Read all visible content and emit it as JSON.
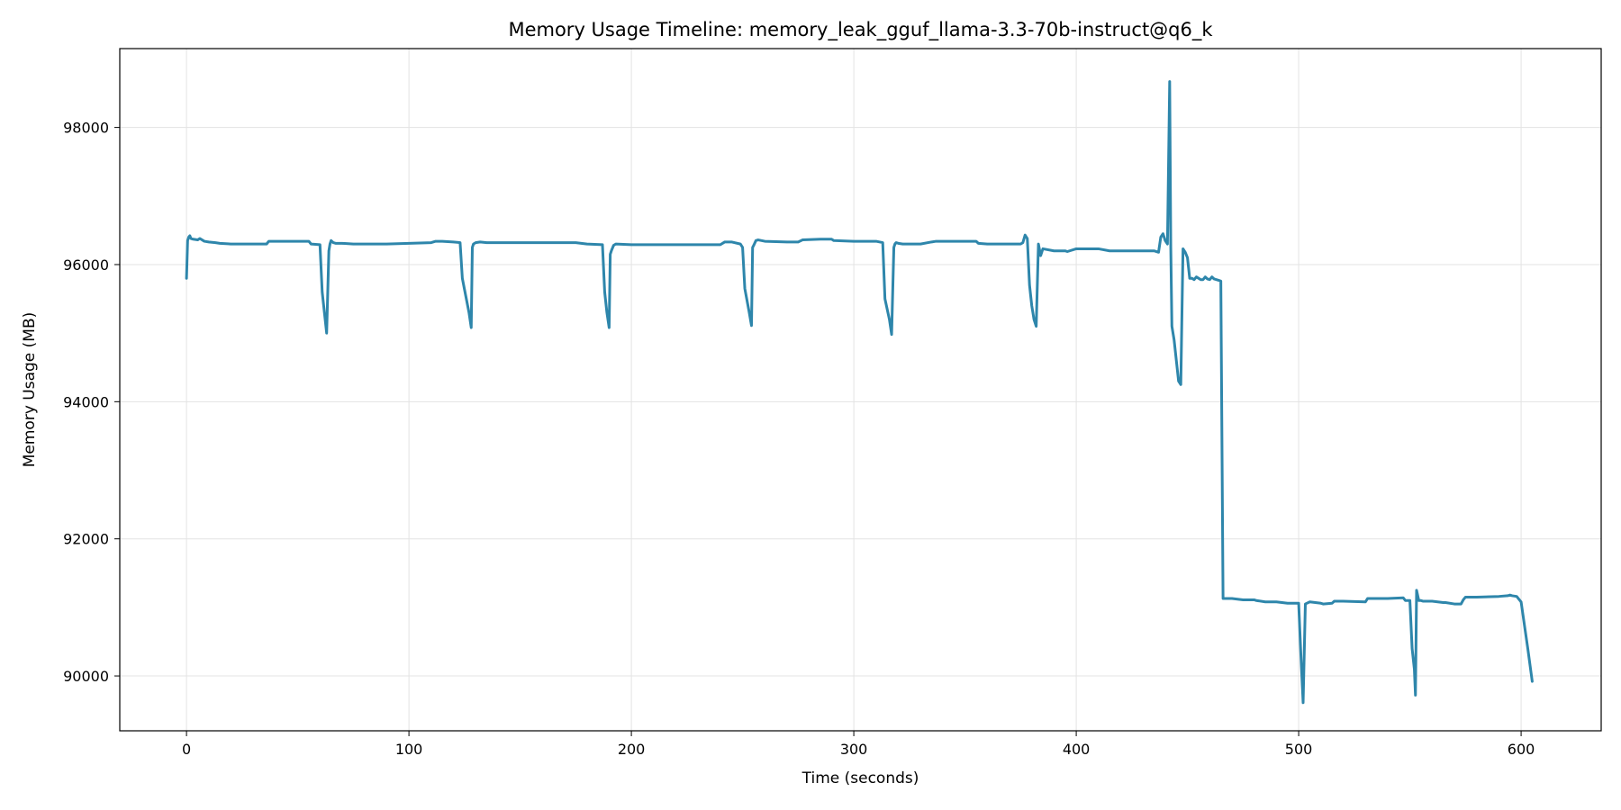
{
  "chart_data": {
    "type": "line",
    "title": "Memory Usage Timeline: memory_leak_gguf_llama-3.3-70b-instruct@q6_k",
    "xlabel": "Time (seconds)",
    "ylabel": "Memory Usage (MB)",
    "xlim": [
      -30,
      636
    ],
    "ylim": [
      89200,
      99150
    ],
    "xticks": [
      0,
      100,
      200,
      300,
      400,
      500,
      600
    ],
    "yticks": [
      90000,
      92000,
      94000,
      96000,
      98000
    ],
    "grid": true,
    "line_color": "#2e86ab",
    "series": [
      {
        "x": [
          0,
          0.5,
          1,
          1.5,
          2,
          3,
          5,
          6,
          8,
          10,
          13,
          15,
          20,
          30,
          36,
          37,
          40,
          55,
          56,
          60,
          61,
          62,
          63,
          64,
          64.5,
          65,
          66,
          67,
          70,
          75,
          80,
          90,
          100,
          110,
          112,
          115,
          120,
          123,
          124,
          127,
          128,
          128.5,
          129,
          130,
          132,
          135,
          140,
          160,
          175,
          180,
          187,
          188,
          189,
          190,
          190.5,
          191,
          192,
          193,
          200,
          210,
          240,
          242,
          245,
          249,
          250,
          251,
          253,
          254,
          254.5,
          255,
          256,
          257,
          260,
          270,
          275,
          277,
          285,
          290,
          291,
          300,
          310,
          313,
          314,
          316,
          317,
          318,
          318.5,
          319,
          320,
          322,
          330,
          335,
          337,
          350,
          355,
          356,
          360,
          375,
          376,
          377,
          378,
          379,
          380,
          381,
          382,
          383,
          384,
          385,
          390,
          395,
          396,
          400,
          405,
          406,
          410,
          415,
          416,
          420,
          425,
          430,
          435,
          437,
          438,
          439,
          440,
          441,
          442,
          442.5,
          443,
          444,
          445,
          446,
          447,
          448,
          449,
          450,
          451,
          452,
          453,
          454,
          455,
          456,
          457,
          458,
          459,
          460,
          461,
          462,
          463,
          464,
          465,
          466,
          470,
          475,
          480,
          481,
          485,
          490,
          495,
          496,
          500,
          501,
          502,
          503,
          505,
          510,
          511,
          515,
          516,
          520,
          530,
          531,
          540,
          547,
          548,
          549,
          550,
          551,
          552,
          552.5,
          553,
          554,
          555,
          556,
          560,
          565,
          566,
          570,
          573,
          574,
          575,
          580,
          590,
          594,
          595,
          596,
          598,
          600,
          603,
          605
        ],
        "y": [
          95800,
          96350,
          96400,
          96420,
          96380,
          96370,
          96360,
          96380,
          96340,
          96330,
          96320,
          96310,
          96300,
          96300,
          96300,
          96340,
          96340,
          96340,
          96300,
          96290,
          95600,
          95300,
          95000,
          96200,
          96300,
          96350,
          96320,
          96310,
          96310,
          96300,
          96300,
          96300,
          96310,
          96320,
          96340,
          96340,
          96330,
          96320,
          95800,
          95300,
          95080,
          96250,
          96300,
          96320,
          96330,
          96320,
          96320,
          96320,
          96320,
          96300,
          96290,
          95600,
          95300,
          95080,
          96150,
          96200,
          96280,
          96300,
          96290,
          96290,
          96290,
          96330,
          96330,
          96300,
          96250,
          95650,
          95300,
          95110,
          96250,
          96280,
          96350,
          96360,
          96340,
          96330,
          96330,
          96360,
          96370,
          96370,
          96350,
          96340,
          96340,
          96320,
          95500,
          95200,
          94980,
          96250,
          96300,
          96320,
          96310,
          96300,
          96300,
          96330,
          96340,
          96340,
          96340,
          96310,
          96300,
          96300,
          96320,
          96430,
          96380,
          95700,
          95400,
          95200,
          95100,
          96300,
          96130,
          96230,
          96200,
          96200,
          96190,
          96230,
          96230,
          96230,
          96230,
          96200,
          96200,
          96200,
          96200,
          96200,
          96200,
          96180,
          96400,
          96450,
          96350,
          96300,
          98670,
          96250,
          95100,
          94900,
          94600,
          94300,
          94250,
          96230,
          96180,
          96100,
          95800,
          95800,
          95780,
          95820,
          95800,
          95780,
          95780,
          95820,
          95790,
          95780,
          95820,
          95790,
          95780,
          95770,
          95760,
          91130,
          91130,
          91110,
          91110,
          91100,
          91080,
          91080,
          91060,
          91060,
          91060,
          90300,
          89610,
          91050,
          91080,
          91060,
          91050,
          91060,
          91090,
          91090,
          91080,
          91130,
          91130,
          91140,
          91100,
          91100,
          91100,
          90400,
          90100,
          89720,
          91250,
          91100,
          91100,
          91090,
          91090,
          91070,
          91070,
          91050,
          91050,
          91110,
          91150,
          91150,
          91160,
          91170,
          91180,
          91170,
          91160,
          91080,
          90400,
          89920
        ]
      }
    ]
  }
}
